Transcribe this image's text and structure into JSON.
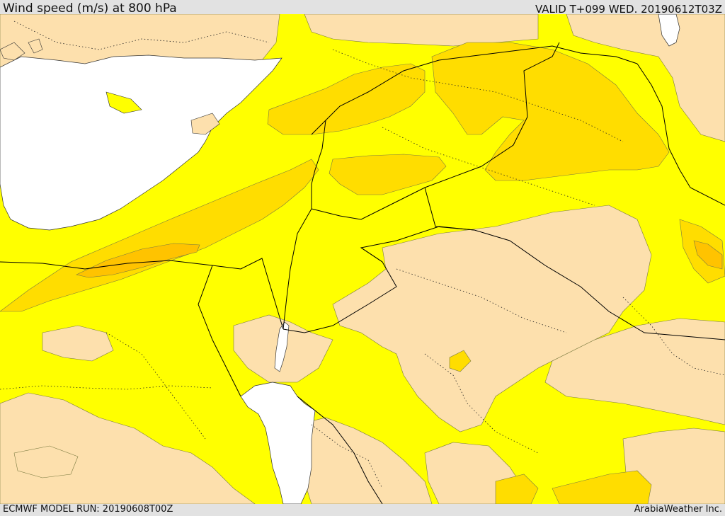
{
  "header": {
    "title": "Wind speed (m/s) at 800 hPa",
    "valid": "VALID T+099 WED. 20190612T03Z"
  },
  "footer": {
    "model_run": "ECMWF MODEL RUN: 20190608T00Z",
    "credit": "ArabiaWeather Inc."
  },
  "colors": {
    "sea": "#ffffff",
    "band_low": "#fde0ad",
    "band_mid": "#ffff00",
    "band_high": "#ffdd00",
    "band_max": "#ffc300",
    "border": "#000000",
    "frame": "#e2e2e2"
  }
}
